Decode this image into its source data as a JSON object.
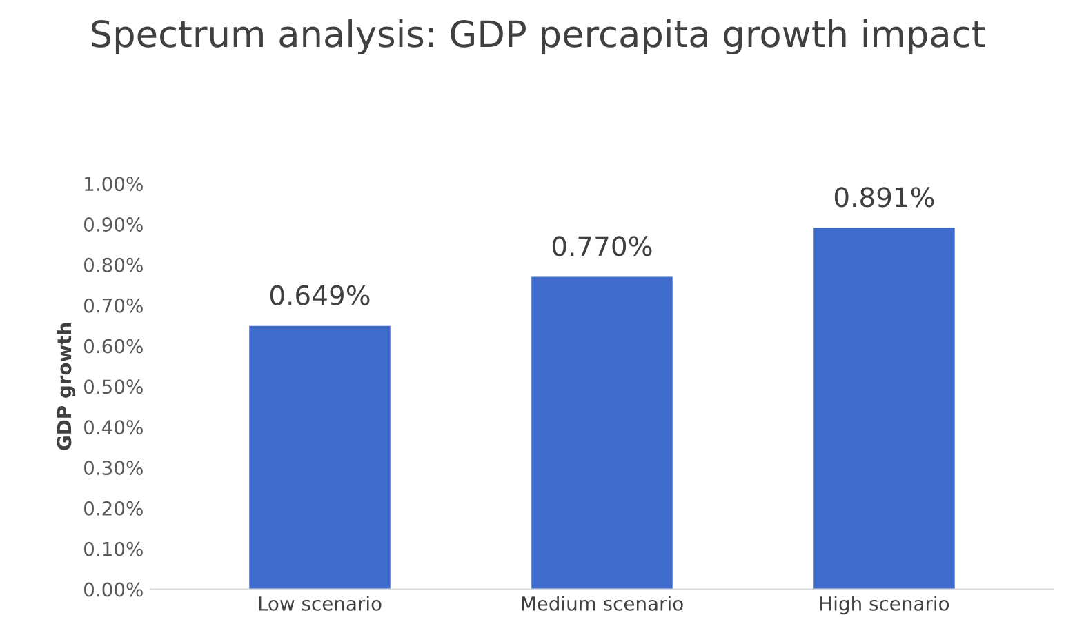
{
  "chart_data": {
    "type": "bar",
    "title": "Spectrum analysis: GDP percapita growth impact",
    "ylabel": "GDP growth",
    "categories": [
      "Low scenario",
      "Medium scenario",
      "High scenario"
    ],
    "values": [
      0.649,
      0.77,
      0.891
    ],
    "color": "#3f6ccc",
    "value_labels": [
      "0.649%",
      "0.770%",
      "0.891%"
    ],
    "ylim": [
      0,
      1.0
    ],
    "yticks": [
      {
        "value": 0,
        "label": "0.00%"
      },
      {
        "value": 0.1,
        "label": "0.10%"
      },
      {
        "value": 0.2,
        "label": "0.20%"
      },
      {
        "value": 0.3,
        "label": "0.30%"
      },
      {
        "value": 0.4,
        "label": "0.40%"
      },
      {
        "value": 0.5,
        "label": "0.50%"
      },
      {
        "value": 0.6,
        "label": "0.60%"
      },
      {
        "value": 0.7,
        "label": "0.70%"
      },
      {
        "value": 0.8,
        "label": "0.80%"
      },
      {
        "value": 0.9,
        "label": "0.90%"
      },
      {
        "value": 1.0,
        "label": "1.00%"
      }
    ],
    "grid": false
  }
}
